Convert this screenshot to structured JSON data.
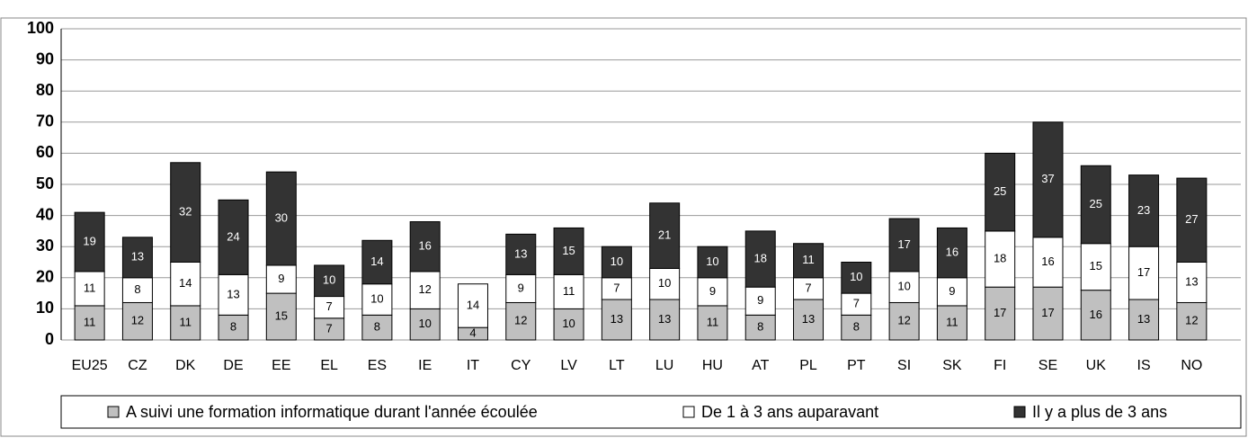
{
  "chart_data": {
    "type": "stacked_bar",
    "categories": [
      "EU25",
      "CZ",
      "DK",
      "DE",
      "EE",
      "EL",
      "ES",
      "IE",
      "IT",
      "CY",
      "LV",
      "LT",
      "LU",
      "HU",
      "AT",
      "PL",
      "PT",
      "SI",
      "SK",
      "FI",
      "SE",
      "UK",
      "IS",
      "NO"
    ],
    "series": [
      {
        "name": "A suivi une formation informatique durant l'année écoulée",
        "color": "#c0c0c0",
        "values": [
          11,
          12,
          11,
          8,
          15,
          7,
          8,
          10,
          4,
          12,
          10,
          13,
          13,
          11,
          8,
          13,
          8,
          12,
          11,
          17,
          17,
          16,
          13,
          12
        ]
      },
      {
        "name": "De 1 à 3 ans auparavant",
        "color": "#ffffff",
        "values": [
          11,
          8,
          14,
          13,
          9,
          7,
          10,
          12,
          14,
          9,
          11,
          7,
          10,
          9,
          9,
          7,
          7,
          10,
          9,
          18,
          16,
          15,
          17,
          13
        ]
      },
      {
        "name": "Il y a plus de 3  ans",
        "color": "#333333",
        "values": [
          19,
          13,
          32,
          24,
          30,
          10,
          14,
          16,
          null,
          13,
          15,
          10,
          21,
          10,
          18,
          11,
          10,
          17,
          16,
          25,
          37,
          25,
          23,
          27
        ]
      }
    ],
    "ylim": [
      0,
      100
    ],
    "yticks": [
      0,
      10,
      20,
      30,
      40,
      50,
      60,
      70,
      80,
      90,
      100
    ],
    "grid": true,
    "legend": "bottom"
  }
}
